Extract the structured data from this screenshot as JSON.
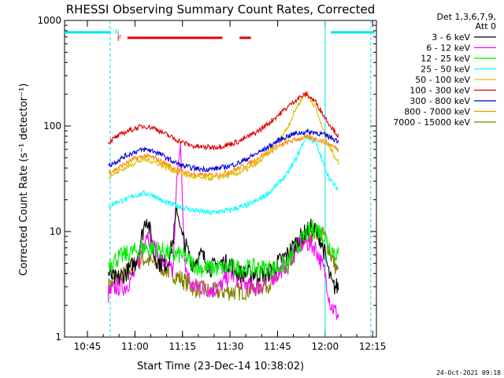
{
  "chart_data": {
    "type": "line",
    "title": "RHESSI Observing Summary Count Rates, Corrected",
    "xlabel": "Start Time (23-Dec-14 10:38:02)",
    "ylabel": "Corrected Count Rate (s⁻¹ detector⁻¹)",
    "ylog": true,
    "ylim": [
      1,
      1000
    ],
    "xlim_minutes": [
      10.63,
      12.27
    ],
    "xticks": [
      "10:45",
      "11:00",
      "11:15",
      "11:30",
      "11:45",
      "12:00",
      "12:15"
    ],
    "xtick_hours": [
      10.75,
      11.0,
      11.25,
      11.5,
      11.75,
      12.0,
      12.25
    ],
    "yticks": [
      "1",
      "10",
      "100",
      "1000"
    ],
    "ytick_values": [
      1,
      10,
      100,
      1000
    ],
    "legend_header": [
      "Det 1,3,6,7,9,",
      "Att 0"
    ],
    "legend_placement": "right",
    "timestamp": "24-Oct-2021 09:18",
    "flags": {
      "night_label": "N",
      "flare_label": "F",
      "night_color": "#00e5e5",
      "flare_color": "#e00000",
      "night_start_hours": [
        10.63,
        12.03
      ],
      "night_end_hours": [
        10.87,
        12.26
      ],
      "flare_start_hours": [
        10.96,
        11.55
      ],
      "flare_end_hours": [
        11.46,
        11.61
      ],
      "saa_lines_hours": [
        10.87,
        12.0,
        12.24
      ],
      "data_start": 10.86,
      "data_end": 12.07
    },
    "series": [
      {
        "name": "3 - 6 keV",
        "color": "#000000",
        "x": [
          10.86,
          10.9,
          10.95,
          11.0,
          11.03,
          11.06,
          11.08,
          11.1,
          11.13,
          11.17,
          11.2,
          11.22,
          11.25,
          11.3,
          11.35,
          11.4,
          11.45,
          11.5,
          11.55,
          11.6,
          11.65,
          11.7,
          11.75,
          11.8,
          11.85,
          11.9,
          11.93,
          11.97,
          12.0,
          12.02,
          12.04,
          12.07
        ],
        "y": [
          4,
          3.5,
          4,
          5,
          8,
          14,
          10,
          6,
          5,
          5,
          8,
          16,
          9,
          5,
          6,
          4.5,
          5,
          5,
          4,
          4,
          4,
          4,
          5,
          6,
          8,
          10,
          11,
          9,
          6,
          4,
          3,
          3
        ]
      },
      {
        "name": "6 - 12 keV",
        "color": "#ff00ff",
        "x": [
          10.86,
          10.9,
          10.95,
          11.0,
          11.03,
          11.06,
          11.1,
          11.15,
          11.2,
          11.22,
          11.24,
          11.26,
          11.3,
          11.35,
          11.4,
          11.45,
          11.5,
          11.55,
          11.6,
          11.65,
          11.7,
          11.75,
          11.8,
          11.85,
          11.9,
          11.95,
          12.0,
          12.03,
          12.07
        ],
        "y": [
          2.5,
          3,
          3,
          4,
          6,
          10,
          7,
          5,
          4,
          30,
          70,
          5,
          3,
          3,
          2.8,
          3,
          4,
          3.5,
          3,
          3,
          3.5,
          4,
          5,
          7,
          8,
          7,
          4,
          2,
          1.6
        ]
      },
      {
        "name": "12 - 25 keV",
        "color": "#00ee00",
        "x": [
          10.86,
          10.9,
          10.95,
          11.0,
          11.05,
          11.1,
          11.15,
          11.2,
          11.25,
          11.3,
          11.35,
          11.4,
          11.45,
          11.5,
          11.55,
          11.6,
          11.65,
          11.7,
          11.75,
          11.8,
          11.85,
          11.9,
          11.95,
          12.0,
          12.03,
          12.07
        ],
        "y": [
          5,
          5.5,
          6,
          6.5,
          7,
          7,
          6.5,
          6,
          6,
          5,
          4.5,
          4.5,
          4.5,
          4.5,
          4.5,
          4.5,
          4.5,
          4.5,
          4.5,
          5,
          7,
          9.5,
          11,
          9,
          7,
          6
        ]
      },
      {
        "name": "25 - 50 keV",
        "color": "#00ffff",
        "x": [
          10.86,
          10.9,
          10.95,
          11.0,
          11.05,
          11.1,
          11.15,
          11.2,
          11.25,
          11.3,
          11.35,
          11.4,
          11.45,
          11.5,
          11.55,
          11.6,
          11.65,
          11.7,
          11.75,
          11.8,
          11.85,
          11.9,
          11.95,
          12.0,
          12.03,
          12.07
        ],
        "y": [
          17,
          19,
          20,
          22,
          23,
          22,
          19,
          18,
          17,
          16,
          15.5,
          15,
          15.5,
          16,
          17,
          18,
          20,
          23,
          28,
          35,
          50,
          80,
          70,
          40,
          30,
          25
        ]
      },
      {
        "name": "50 - 100 keV",
        "color": "#e0c000",
        "x": [
          10.86,
          10.9,
          10.95,
          11.0,
          11.05,
          11.1,
          11.15,
          11.2,
          11.25,
          11.3,
          11.35,
          11.4,
          11.45,
          11.5,
          11.55,
          11.6,
          11.65,
          11.7,
          11.75,
          11.8,
          11.85,
          11.9,
          11.95,
          12.0,
          12.03,
          12.07
        ],
        "y": [
          33,
          36,
          40,
          45,
          48,
          46,
          42,
          38,
          35,
          33,
          32,
          32,
          33,
          34,
          36,
          40,
          45,
          55,
          70,
          95,
          150,
          210,
          150,
          80,
          60,
          45
        ]
      },
      {
        "name": "100 - 300 keV",
        "color": "#dd0000",
        "x": [
          10.86,
          10.9,
          10.95,
          11.0,
          11.05,
          11.1,
          11.15,
          11.2,
          11.25,
          11.3,
          11.35,
          11.4,
          11.45,
          11.5,
          11.55,
          11.6,
          11.65,
          11.7,
          11.75,
          11.8,
          11.85,
          11.9,
          11.95,
          12.0,
          12.03,
          12.07
        ],
        "y": [
          70,
          78,
          88,
          95,
          100,
          96,
          86,
          77,
          70,
          65,
          63,
          63,
          64,
          67,
          72,
          80,
          90,
          105,
          125,
          150,
          180,
          200,
          170,
          120,
          100,
          80
        ]
      },
      {
        "name": "300 - 800 keV",
        "color": "#0000dd",
        "x": [
          10.86,
          10.9,
          10.95,
          11.0,
          11.05,
          11.1,
          11.15,
          11.2,
          11.25,
          11.3,
          11.35,
          11.4,
          11.45,
          11.5,
          11.55,
          11.6,
          11.65,
          11.7,
          11.75,
          11.8,
          11.85,
          11.9,
          11.95,
          12.0,
          12.03,
          12.07
        ],
        "y": [
          42,
          46,
          52,
          57,
          60,
          58,
          52,
          46,
          42,
          40,
          39,
          39,
          40,
          42,
          45,
          50,
          56,
          63,
          72,
          80,
          85,
          88,
          87,
          82,
          78,
          72
        ]
      },
      {
        "name": "800 - 7000 keV",
        "color": "#ff8800",
        "x": [
          10.86,
          10.9,
          10.95,
          11.0,
          11.05,
          11.1,
          11.15,
          11.2,
          11.25,
          11.3,
          11.35,
          11.4,
          11.45,
          11.5,
          11.55,
          11.6,
          11.65,
          11.7,
          11.75,
          11.8,
          11.85,
          11.9,
          11.95,
          12.0,
          12.03,
          12.07
        ],
        "y": [
          36,
          39,
          44,
          49,
          52,
          50,
          45,
          40,
          37,
          35,
          34,
          34,
          35,
          37,
          40,
          44,
          50,
          56,
          63,
          70,
          75,
          78,
          76,
          70,
          66,
          60
        ]
      },
      {
        "name": "7000 - 15000 keV",
        "color": "#808000",
        "x": [
          10.86,
          10.9,
          10.95,
          11.0,
          11.05,
          11.1,
          11.15,
          11.2,
          11.25,
          11.3,
          11.35,
          11.4,
          11.45,
          11.5,
          11.55,
          11.6,
          11.65,
          11.7,
          11.75,
          11.8,
          11.85,
          11.9,
          11.95,
          12.0,
          12.03,
          12.07
        ],
        "y": [
          3,
          3.5,
          4,
          5,
          5.5,
          5,
          4.5,
          4,
          3.5,
          3,
          2.8,
          2.7,
          2.7,
          2.7,
          2.7,
          2.8,
          3,
          3.2,
          3.6,
          4.5,
          6.5,
          9,
          10,
          9,
          6,
          4
        ]
      }
    ]
  }
}
